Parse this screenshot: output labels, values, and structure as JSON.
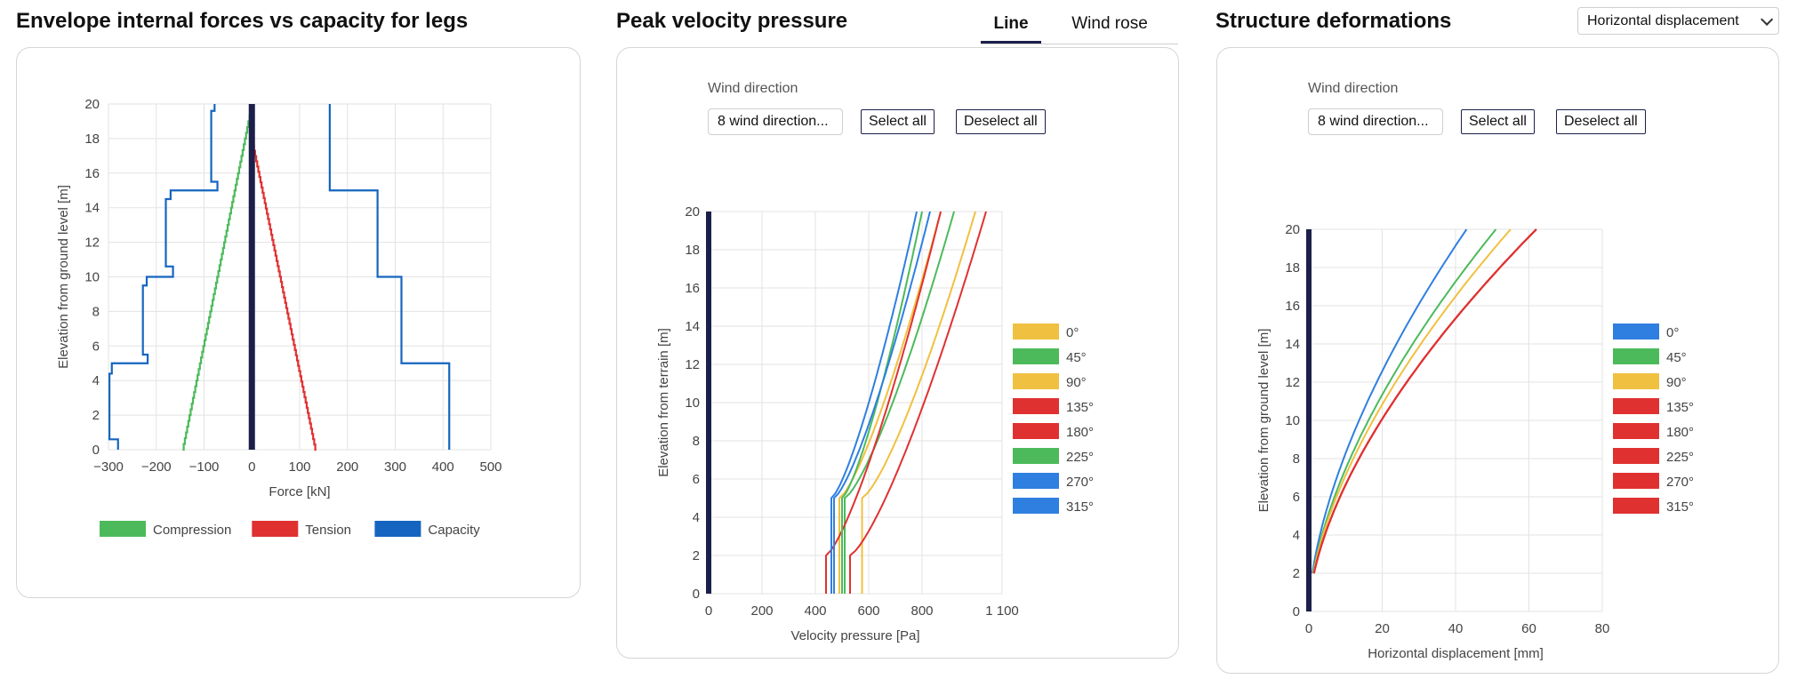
{
  "panels": {
    "forces": {
      "title": "Envelope internal forces vs capacity for legs"
    },
    "wind": {
      "title": "Peak velocity pressure",
      "tabs": [
        {
          "label": "Line",
          "active": true
        },
        {
          "label": "Wind rose",
          "active": false
        }
      ],
      "wind_direction_label": "Wind direction",
      "direction_select": "8 wind direction...",
      "select_all": "Select all",
      "deselect_all": "Deselect all"
    },
    "deform": {
      "title": "Structure deformations",
      "dropdown_value": "Horizontal displacement",
      "wind_direction_label": "Wind direction",
      "direction_select": "8 wind direction...",
      "select_all": "Select all",
      "deselect_all": "Deselect all"
    }
  },
  "colors": {
    "compression": "#4cba5b",
    "tension": "#e03131",
    "capacity": "#1565c0",
    "structure_bar": "#1b1f4a",
    "dir_blue": "#2f7fe0",
    "dir_green": "#4cba5b",
    "dir_yellow": "#f0c040",
    "dir_red": "#e03131"
  },
  "chart_data": [
    {
      "type": "line",
      "xlabel": "Force [kN]",
      "ylabel": "Elevation from ground level [m]",
      "xlim": [
        -300,
        500
      ],
      "ylim": [
        0,
        20
      ],
      "xticks": [
        "−300",
        "−200",
        "−100",
        "0",
        "100",
        "200",
        "300",
        "400",
        "500"
      ],
      "yticks": [
        "0",
        "2",
        "4",
        "6",
        "8",
        "10",
        "12",
        "14",
        "16",
        "18",
        "20"
      ],
      "grid": true,
      "legend_position": "bottom",
      "series": [
        {
          "name": "Compression",
          "color": "compression",
          "step": true,
          "points": [
            [
              -145,
              0
            ],
            [
              0,
              20
            ]
          ]
        },
        {
          "name": "Tension",
          "color": "tension",
          "step": true,
          "points": [
            [
              135,
              0
            ],
            [
              0,
              18.2
            ]
          ]
        },
        {
          "name": "Capacity",
          "color": "capacity",
          "points": [
            [
              -280,
              0
            ],
            [
              -280,
              0.6
            ],
            [
              -298,
              0.6
            ],
            [
              -298,
              4.4
            ],
            [
              -293,
              4.4
            ],
            [
              -293,
              5
            ],
            [
              -218,
              5
            ],
            [
              -218,
              5.5
            ],
            [
              -228,
              5.5
            ],
            [
              -228,
              9.5
            ],
            [
              -220,
              9.5
            ],
            [
              -220,
              10
            ],
            [
              -165,
              10
            ],
            [
              -165,
              10.6
            ],
            [
              -180,
              10.6
            ],
            [
              -180,
              14.5
            ],
            [
              -170,
              14.5
            ],
            [
              -170,
              15
            ],
            [
              -72,
              15
            ],
            [
              -72,
              15.5
            ],
            [
              -85,
              15.5
            ],
            [
              -85,
              19.6
            ],
            [
              -78,
              19.6
            ],
            [
              -78,
              20
            ]
          ]
        },
        {
          "name": "",
          "color": "capacity",
          "points": [
            [
              163,
              20
            ],
            [
              163,
              15
            ],
            [
              263,
              15
            ],
            [
              263,
              10
            ],
            [
              313,
              10
            ],
            [
              313,
              5
            ],
            [
              413,
              5
            ],
            [
              413,
              0
            ]
          ]
        }
      ]
    },
    {
      "type": "line",
      "xlabel": "Velocity pressure [Pa]",
      "ylabel": "Elevation from terrain [m]",
      "xlim": [
        0,
        1100
      ],
      "ylim": [
        0,
        20
      ],
      "xticks": [
        "0",
        "200",
        "400",
        "600",
        "800",
        "1 100"
      ],
      "ytick_step": 2,
      "grid": true,
      "legend_position": "right",
      "series": [
        {
          "name": "0°",
          "color": "dir_yellow",
          "x0": 490,
          "z0": 5,
          "x20": 870
        },
        {
          "name": "45°",
          "color": "dir_green",
          "x0": 510,
          "z0": 5,
          "x20": 920
        },
        {
          "name": "90°",
          "color": "dir_yellow",
          "x0": 575,
          "z0": 5,
          "x20": 1000
        },
        {
          "name": "135°",
          "color": "dir_red",
          "x0": 440,
          "z0": 2,
          "x20": 870
        },
        {
          "name": "180°",
          "color": "dir_red",
          "x0": 530,
          "z0": 2,
          "x20": 1040
        },
        {
          "name": "225°",
          "color": "dir_green",
          "x0": 500,
          "z0": 5,
          "x20": 800
        },
        {
          "name": "270°",
          "color": "dir_blue",
          "x0": 460,
          "z0": 5,
          "x20": 780
        },
        {
          "name": "315°",
          "color": "dir_blue",
          "x0": 470,
          "z0": 5,
          "x20": 830
        }
      ]
    },
    {
      "type": "line",
      "xlabel": "Horizontal displacement [mm]",
      "ylabel": "Elevation from ground level [m]",
      "xlim": [
        0,
        80
      ],
      "ylim": [
        0,
        20
      ],
      "xticks": [
        "0",
        "20",
        "40",
        "60",
        "80"
      ],
      "ytick_step": 2,
      "grid": true,
      "legend_position": "right",
      "series": [
        {
          "name": "0°",
          "color": "dir_blue",
          "d20": 43
        },
        {
          "name": "45°",
          "color": "dir_green",
          "d20": 51
        },
        {
          "name": "90°",
          "color": "dir_yellow",
          "d20": 55
        },
        {
          "name": "135°",
          "color": "dir_red",
          "d20": 62
        },
        {
          "name": "180°",
          "color": "dir_red",
          "d20": 62
        },
        {
          "name": "225°",
          "color": "dir_red",
          "d20": 62
        },
        {
          "name": "270°",
          "color": "dir_red",
          "d20": 62
        },
        {
          "name": "315°",
          "color": "dir_red",
          "d20": 62
        }
      ]
    }
  ]
}
